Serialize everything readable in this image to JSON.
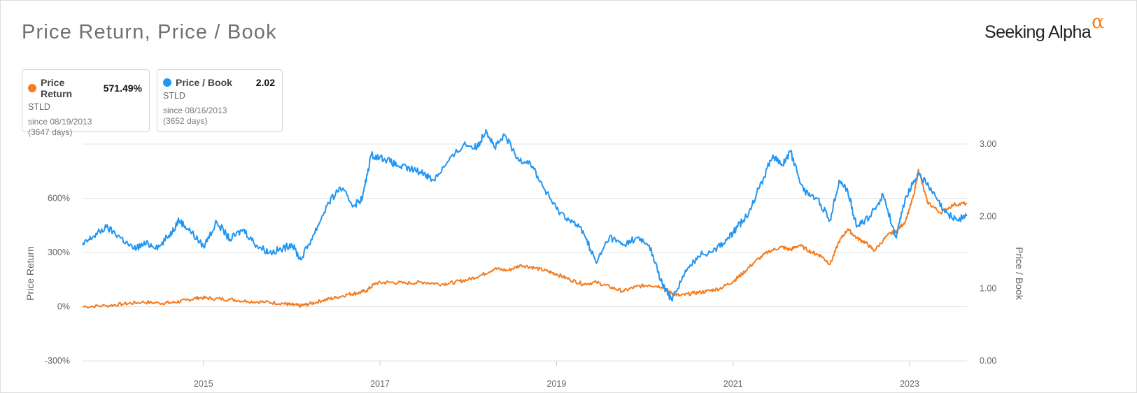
{
  "title": "Price Return, Price / Book",
  "brand": {
    "name": "Seeking Alpha",
    "mark": "α"
  },
  "legend": [
    {
      "name": "Price Return",
      "value": "571.49%",
      "ticker": "STLD",
      "since": "since 08/19/2013",
      "days": "(3647 days)",
      "color": "#f57c1f"
    },
    {
      "name": "Price / Book",
      "value": "2.02",
      "ticker": "STLD",
      "since": "since 08/16/2013",
      "days": "(3652 days)",
      "color": "#2196f3"
    }
  ],
  "chart_data": {
    "type": "line",
    "x_axis": {
      "min": 2013.63,
      "max": 2023.65,
      "ticks": [
        2015,
        2017,
        2019,
        2021,
        2023
      ],
      "tick_labels": [
        "2015",
        "2017",
        "2019",
        "2021",
        "2023"
      ]
    },
    "y_left": {
      "label": "Price Return",
      "min": -300,
      "max": 900,
      "ticks": [
        -300,
        0,
        300,
        600
      ],
      "tick_labels": [
        "-300%",
        "0%",
        "300%",
        "600%"
      ]
    },
    "y_right": {
      "label": "Price / Book",
      "min": 0,
      "max": 3.0,
      "ticks": [
        0,
        1,
        2,
        3
      ],
      "tick_labels": [
        "0.00",
        "1.00",
        "2.00",
        "3.00"
      ]
    },
    "grid": true,
    "series": [
      {
        "name": "Price Return",
        "axis": "left",
        "color": "#f57c1f",
        "points": [
          [
            2013.63,
            0
          ],
          [
            2013.9,
            5
          ],
          [
            2014.1,
            15
          ],
          [
            2014.3,
            25
          ],
          [
            2014.5,
            20
          ],
          [
            2014.65,
            22
          ],
          [
            2014.8,
            35
          ],
          [
            2014.95,
            50
          ],
          [
            2015.1,
            45
          ],
          [
            2015.3,
            40
          ],
          [
            2015.5,
            30
          ],
          [
            2015.7,
            25
          ],
          [
            2015.9,
            18
          ],
          [
            2016.0,
            10
          ],
          [
            2016.1,
            5
          ],
          [
            2016.2,
            15
          ],
          [
            2016.35,
            35
          ],
          [
            2016.5,
            50
          ],
          [
            2016.65,
            70
          ],
          [
            2016.75,
            75
          ],
          [
            2016.85,
            90
          ],
          [
            2016.95,
            130
          ],
          [
            2017.1,
            135
          ],
          [
            2017.3,
            130
          ],
          [
            2017.5,
            135
          ],
          [
            2017.7,
            125
          ],
          [
            2017.85,
            135
          ],
          [
            2018.0,
            150
          ],
          [
            2018.15,
            175
          ],
          [
            2018.3,
            210
          ],
          [
            2018.45,
            200
          ],
          [
            2018.6,
            230
          ],
          [
            2018.75,
            215
          ],
          [
            2018.9,
            195
          ],
          [
            2019.0,
            180
          ],
          [
            2019.15,
            150
          ],
          [
            2019.3,
            125
          ],
          [
            2019.45,
            135
          ],
          [
            2019.6,
            110
          ],
          [
            2019.75,
            85
          ],
          [
            2019.9,
            110
          ],
          [
            2020.05,
            120
          ],
          [
            2020.2,
            110
          ],
          [
            2020.3,
            75
          ],
          [
            2020.4,
            60
          ],
          [
            2020.55,
            75
          ],
          [
            2020.7,
            85
          ],
          [
            2020.85,
            100
          ],
          [
            2021.0,
            140
          ],
          [
            2021.1,
            180
          ],
          [
            2021.25,
            250
          ],
          [
            2021.4,
            305
          ],
          [
            2021.55,
            330
          ],
          [
            2021.65,
            315
          ],
          [
            2021.75,
            340
          ],
          [
            2021.9,
            300
          ],
          [
            2022.0,
            280
          ],
          [
            2022.1,
            235
          ],
          [
            2022.2,
            360
          ],
          [
            2022.3,
            430
          ],
          [
            2022.4,
            380
          ],
          [
            2022.5,
            355
          ],
          [
            2022.6,
            310
          ],
          [
            2022.75,
            395
          ],
          [
            2022.85,
            420
          ],
          [
            2022.95,
            470
          ],
          [
            2023.05,
            620
          ],
          [
            2023.1,
            760
          ],
          [
            2023.2,
            580
          ],
          [
            2023.35,
            520
          ],
          [
            2023.5,
            565
          ],
          [
            2023.65,
            571.49
          ]
        ]
      },
      {
        "name": "Price / Book",
        "axis": "right",
        "color": "#2196f3",
        "points": [
          [
            2013.63,
            1.6
          ],
          [
            2013.75,
            1.72
          ],
          [
            2013.9,
            1.85
          ],
          [
            2014.05,
            1.72
          ],
          [
            2014.2,
            1.55
          ],
          [
            2014.35,
            1.62
          ],
          [
            2014.5,
            1.58
          ],
          [
            2014.65,
            1.8
          ],
          [
            2014.72,
            1.95
          ],
          [
            2014.85,
            1.8
          ],
          [
            2015.0,
            1.58
          ],
          [
            2015.15,
            1.92
          ],
          [
            2015.3,
            1.68
          ],
          [
            2015.45,
            1.82
          ],
          [
            2015.6,
            1.6
          ],
          [
            2015.75,
            1.5
          ],
          [
            2015.9,
            1.55
          ],
          [
            2016.0,
            1.62
          ],
          [
            2016.1,
            1.4
          ],
          [
            2016.25,
            1.75
          ],
          [
            2016.4,
            2.15
          ],
          [
            2016.55,
            2.4
          ],
          [
            2016.7,
            2.15
          ],
          [
            2016.8,
            2.25
          ],
          [
            2016.9,
            2.85
          ],
          [
            2017.05,
            2.8
          ],
          [
            2017.2,
            2.7
          ],
          [
            2017.35,
            2.65
          ],
          [
            2017.5,
            2.6
          ],
          [
            2017.6,
            2.5
          ],
          [
            2017.75,
            2.72
          ],
          [
            2017.95,
            3.0
          ],
          [
            2018.1,
            2.95
          ],
          [
            2018.2,
            3.2
          ],
          [
            2018.3,
            2.95
          ],
          [
            2018.42,
            3.12
          ],
          [
            2018.55,
            2.8
          ],
          [
            2018.7,
            2.75
          ],
          [
            2018.85,
            2.4
          ],
          [
            2019.0,
            2.1
          ],
          [
            2019.15,
            1.95
          ],
          [
            2019.3,
            1.8
          ],
          [
            2019.45,
            1.35
          ],
          [
            2019.6,
            1.72
          ],
          [
            2019.75,
            1.6
          ],
          [
            2019.9,
            1.7
          ],
          [
            2020.05,
            1.6
          ],
          [
            2020.2,
            1.05
          ],
          [
            2020.3,
            0.85
          ],
          [
            2020.45,
            1.2
          ],
          [
            2020.6,
            1.45
          ],
          [
            2020.8,
            1.55
          ],
          [
            2020.95,
            1.7
          ],
          [
            2021.05,
            1.85
          ],
          [
            2021.15,
            2.0
          ],
          [
            2021.3,
            2.4
          ],
          [
            2021.45,
            2.85
          ],
          [
            2021.55,
            2.7
          ],
          [
            2021.65,
            2.9
          ],
          [
            2021.8,
            2.35
          ],
          [
            2021.95,
            2.25
          ],
          [
            2022.1,
            1.95
          ],
          [
            2022.2,
            2.5
          ],
          [
            2022.3,
            2.35
          ],
          [
            2022.4,
            1.85
          ],
          [
            2022.55,
            2.0
          ],
          [
            2022.7,
            2.3
          ],
          [
            2022.85,
            1.7
          ],
          [
            2022.95,
            2.25
          ],
          [
            2023.1,
            2.6
          ],
          [
            2023.25,
            2.35
          ],
          [
            2023.4,
            2.05
          ],
          [
            2023.55,
            1.95
          ],
          [
            2023.65,
            2.02
          ]
        ]
      }
    ]
  }
}
